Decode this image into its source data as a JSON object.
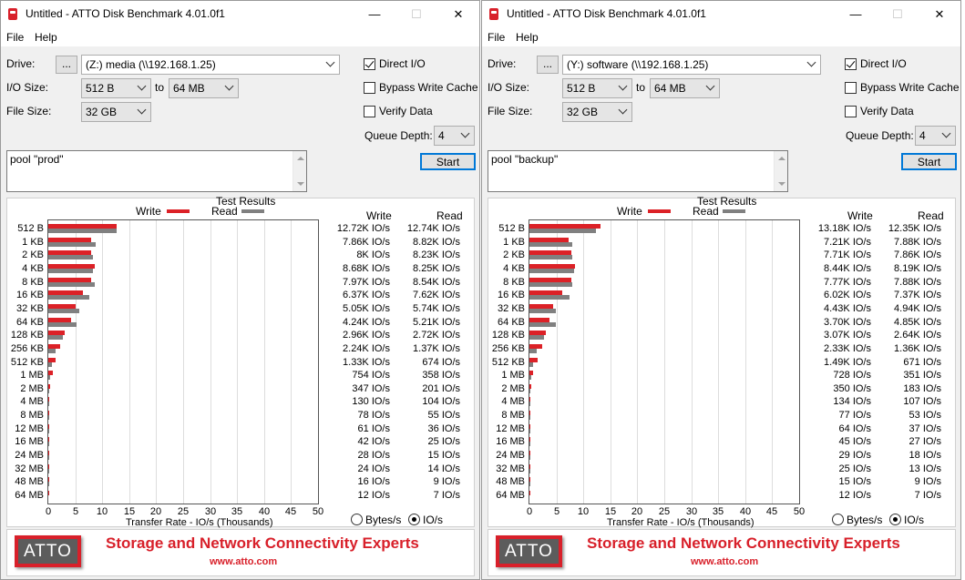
{
  "colors": {
    "write": "#dc2127",
    "read": "#808080"
  },
  "icons": {
    "app": "atto-disk-icon",
    "min": "minimize-icon",
    "max": "maximize-icon",
    "close": "close-icon"
  },
  "chart_axis": {
    "max": 50,
    "ticks": [
      "0",
      "5",
      "10",
      "15",
      "20",
      "25",
      "30",
      "35",
      "40",
      "45",
      "50"
    ]
  },
  "windows": [
    {
      "title": "Untitled - ATTO Disk Benchmark 4.01.0f1",
      "menu": [
        "File",
        "Help"
      ],
      "drive_label": "Drive:",
      "browse_label": "...",
      "drive_value": "(Z:) media (\\\\192.168.1.25)",
      "io_size_label": "I/O Size:",
      "io_from": "512 B",
      "to_label": "to",
      "io_to": "64 MB",
      "file_size_label": "File Size:",
      "file_size": "32 GB",
      "direct_io": "Direct I/O",
      "direct_io_checked": true,
      "bypass": "Bypass Write Cache",
      "bypass_checked": false,
      "verify": "Verify Data",
      "verify_checked": false,
      "queue_label": "Queue Depth:",
      "queue_value": "4",
      "start_label": "Start",
      "description": "pool \"prod\"",
      "results_title": "Test Results",
      "legend_write": "Write",
      "legend_read": "Read",
      "col_write": "Write",
      "col_read": "Read",
      "x_label": "Transfer Rate - IO/s (Thousands)",
      "unit_bytes": "Bytes/s",
      "unit_io": "IO/s",
      "unit_selected": "io",
      "banner_text": "Storage and Network Connectivity Experts",
      "banner_url": "www.atto.com",
      "logo_text": "ATTO",
      "chart_data": {
        "type": "bar",
        "categories": [
          "512 B",
          "1 KB",
          "2 KB",
          "4 KB",
          "8 KB",
          "16 KB",
          "32 KB",
          "64 KB",
          "128 KB",
          "256 KB",
          "512 KB",
          "1 MB",
          "2 MB",
          "4 MB",
          "8 MB",
          "12 MB",
          "16 MB",
          "24 MB",
          "32 MB",
          "48 MB",
          "64 MB"
        ],
        "series": [
          {
            "name": "Write",
            "values": [
              12.72,
              7.86,
              8,
              8.68,
              7.97,
              6.37,
              5.05,
              4.24,
              2.96,
              2.24,
              1.33,
              0.754,
              0.347,
              0.13,
              0.078,
              0.061,
              0.042,
              0.028,
              0.024,
              0.016,
              0.012
            ]
          },
          {
            "name": "Read",
            "values": [
              12.74,
              8.82,
              8.23,
              8.25,
              8.54,
              7.62,
              5.74,
              5.21,
              2.72,
              1.37,
              0.674,
              0.358,
              0.201,
              0.104,
              0.055,
              0.036,
              0.025,
              0.015,
              0.014,
              0.009,
              0.007
            ]
          }
        ],
        "write_text": [
          "12.72K IO/s",
          "7.86K IO/s",
          "8K IO/s",
          "8.68K IO/s",
          "7.97K IO/s",
          "6.37K IO/s",
          "5.05K IO/s",
          "4.24K IO/s",
          "2.96K IO/s",
          "2.24K IO/s",
          "1.33K IO/s",
          "754 IO/s",
          "347 IO/s",
          "130 IO/s",
          "78 IO/s",
          "61 IO/s",
          "42 IO/s",
          "28 IO/s",
          "24 IO/s",
          "16 IO/s",
          "12 IO/s"
        ],
        "read_text": [
          "12.74K IO/s",
          "8.82K IO/s",
          "8.23K IO/s",
          "8.25K IO/s",
          "8.54K IO/s",
          "7.62K IO/s",
          "5.74K IO/s",
          "5.21K IO/s",
          "2.72K IO/s",
          "1.37K IO/s",
          "674 IO/s",
          "358 IO/s",
          "201 IO/s",
          "104 IO/s",
          "55 IO/s",
          "36 IO/s",
          "25 IO/s",
          "15 IO/s",
          "14 IO/s",
          "9 IO/s",
          "7 IO/s"
        ],
        "xlim": [
          0,
          50
        ]
      }
    },
    {
      "title": "Untitled - ATTO Disk Benchmark 4.01.0f1",
      "menu": [
        "File",
        "Help"
      ],
      "drive_label": "Drive:",
      "browse_label": "...",
      "drive_value": "(Y:) software (\\\\192.168.1.25)",
      "io_size_label": "I/O Size:",
      "io_from": "512 B",
      "to_label": "to",
      "io_to": "64 MB",
      "file_size_label": "File Size:",
      "file_size": "32 GB",
      "direct_io": "Direct I/O",
      "direct_io_checked": true,
      "bypass": "Bypass Write Cache",
      "bypass_checked": false,
      "verify": "Verify Data",
      "verify_checked": false,
      "queue_label": "Queue Depth:",
      "queue_value": "4",
      "start_label": "Start",
      "description": "pool \"backup\"",
      "results_title": "Test Results",
      "legend_write": "Write",
      "legend_read": "Read",
      "col_write": "Write",
      "col_read": "Read",
      "x_label": "Transfer Rate - IO/s (Thousands)",
      "unit_bytes": "Bytes/s",
      "unit_io": "IO/s",
      "unit_selected": "io",
      "banner_text": "Storage and Network Connectivity Experts",
      "banner_url": "www.atto.com",
      "logo_text": "ATTO",
      "chart_data": {
        "type": "bar",
        "categories": [
          "512 B",
          "1 KB",
          "2 KB",
          "4 KB",
          "8 KB",
          "16 KB",
          "32 KB",
          "64 KB",
          "128 KB",
          "256 KB",
          "512 KB",
          "1 MB",
          "2 MB",
          "4 MB",
          "8 MB",
          "12 MB",
          "16 MB",
          "24 MB",
          "32 MB",
          "48 MB",
          "64 MB"
        ],
        "series": [
          {
            "name": "Write",
            "values": [
              13.18,
              7.21,
              7.71,
              8.44,
              7.77,
              6.02,
              4.43,
              3.7,
              3.07,
              2.33,
              1.49,
              0.728,
              0.35,
              0.134,
              0.077,
              0.064,
              0.045,
              0.029,
              0.025,
              0.015,
              0.012
            ]
          },
          {
            "name": "Read",
            "values": [
              12.35,
              7.88,
              7.86,
              8.19,
              7.88,
              7.37,
              4.94,
              4.85,
              2.64,
              1.36,
              0.671,
              0.351,
              0.183,
              0.107,
              0.053,
              0.037,
              0.027,
              0.018,
              0.013,
              0.009,
              0.007
            ]
          }
        ],
        "write_text": [
          "13.18K IO/s",
          "7.21K IO/s",
          "7.71K IO/s",
          "8.44K IO/s",
          "7.77K IO/s",
          "6.02K IO/s",
          "4.43K IO/s",
          "3.70K IO/s",
          "3.07K IO/s",
          "2.33K IO/s",
          "1.49K IO/s",
          "728 IO/s",
          "350 IO/s",
          "134 IO/s",
          "77 IO/s",
          "64 IO/s",
          "45 IO/s",
          "29 IO/s",
          "25 IO/s",
          "15 IO/s",
          "12 IO/s"
        ],
        "read_text": [
          "12.35K IO/s",
          "7.88K IO/s",
          "7.86K IO/s",
          "8.19K IO/s",
          "7.88K IO/s",
          "7.37K IO/s",
          "4.94K IO/s",
          "4.85K IO/s",
          "2.64K IO/s",
          "1.36K IO/s",
          "671 IO/s",
          "351 IO/s",
          "183 IO/s",
          "107 IO/s",
          "53 IO/s",
          "37 IO/s",
          "27 IO/s",
          "18 IO/s",
          "13 IO/s",
          "9 IO/s",
          "7 IO/s"
        ],
        "xlim": [
          0,
          50
        ]
      }
    }
  ]
}
